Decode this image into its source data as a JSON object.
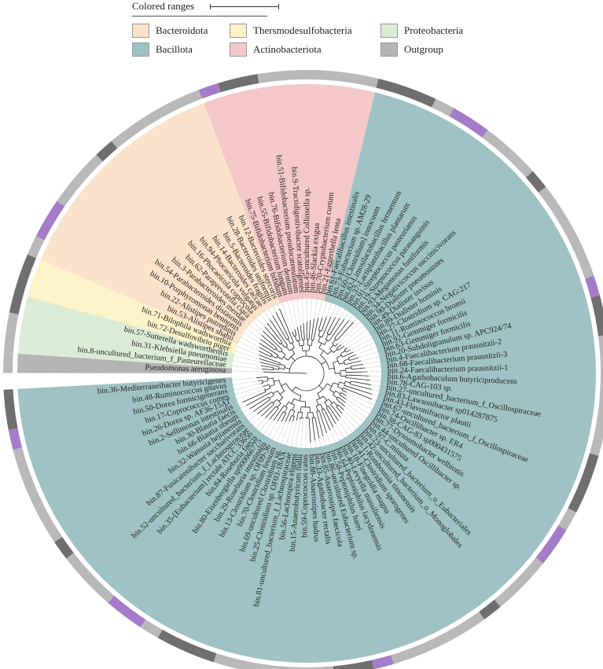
{
  "legend": {
    "title": "Colored ranges",
    "items": [
      {
        "label": "Bacteroidota",
        "color": "#fbe3cb"
      },
      {
        "label": "Thersmodesulfobacteria",
        "color": "#fdf3c8"
      },
      {
        "label": "Proteobacteria",
        "color": "#dbecd6"
      },
      {
        "label": "Bacillota",
        "color": "#9fc2c4"
      },
      {
        "label": "Actinobacteriota",
        "color": "#f4c8c8"
      },
      {
        "label": "Outgroup",
        "color": "#b4b4b4"
      }
    ]
  },
  "ring_colors": {
    "light": "#b9b9b9",
    "dark": "#6f6f6f",
    "purple": "#a57cc9"
  },
  "leaves": [
    "Pseudomonas aeruginosa",
    "bin.8-uncultured_bacterium_f_Pasteurellaceae",
    "bin.31-Klebsiella pneumoniae",
    "bin.57-Sutterella wadsworthensis",
    "bin.72-Desulfovibrio piger",
    "bin.71-Bilophila wadsworthia",
    "bin.53-Alistipes shahii",
    "bin.22-Alistipes putredinis",
    "bin.10-Porphyromonas bennonis",
    "bin.54-Parabacteroides distasonis",
    "bin.3-Parabacteroides merdae",
    "bin.62-Paraprevotella clara",
    "bin.16-Phocaeicola coprocola",
    "bin.94-Phocaeicola vulgatus",
    "bin.14-Bacteroides caccae",
    "bin.5-Bacteroides fragilis",
    "bin.28-Bacteroides uniformis",
    "bin.12-Bacteroides stercoris",
    "bin.75-Bifidobacterium bifidum",
    "bin.55-Bifidobacterium longum",
    "bin.76-Bifidobacterium dentium",
    "bin.51-Bifidobacterium pseudocatenulatum",
    "bin.9-Tractidigestivibacter scatoligenes",
    "bin.45-uncultured Collinsella sp.",
    "bin.46-Slackia exigua",
    "bin.70-Cryptobacterium curtum",
    "bin.21-Eggerthella lenta",
    "bin.61-Faecalibacillus intestinalis",
    "bin.73-Eubacterium sp. AM28-29",
    "bin.60-[Clostridium] innocuum",
    "bin.82-Limosilactobacillus fermentum",
    "bin.37-Lactiplantibacillus plantarum",
    "bin.91-Streptococcus pasteurianus",
    "bin.19-Streptococcus parasanguinis",
    "bin.93-Megamonas funiformis",
    "bin.34-Negativicoccus succinicivorans",
    "bin.90-Dialister pneumosintes",
    "bin.49-Dialister invisus",
    "bin.89-Dialister hominis",
    "bin.27-Clostridium sp. CAG:217",
    "bin.11-Ruminococcus bromii",
    "bin.92-Gemmiger formicilis",
    "bin.63-Gemmiger formicilis",
    "bin.20-Subdoligranulum sp. APC924/74",
    "bin.4-Faecalibacterium prausnitzii-2",
    "bin.68-Faecalibacterium prausnitzii-3",
    "bin.24-Faecalibacterium prausnitzii-1",
    "bin.6-Agathobaculum butyriciproducens",
    "bin.78-CAG-103 sp.",
    "bin.27-uncultured_bacterium_f_Oscillospiraceae",
    "bin.83-Lawsonibacter sp014287875",
    "bin.43-Flavonifractor plautii",
    "bin.67-uncultured_bacterium_f_Oscillospiraceae",
    "bin.74-Oscillibacter sp. ER4",
    "bin.38-CAG-83 sp000431575",
    "bin.77-Dysosmobacter welbionis",
    "bin.44-uncultured Oscillibacter sp.",
    "bin.97-C.minuta",
    "bin.23-uncultured_bacterium_o_Eubacteriales",
    "bin.42-uncultured_bacterium_o_Monoglobales",
    "bin.1-Romboutsia timonensis",
    "bin.41-Clostridium sporogenes",
    "bin.18-Finegoldia magna",
    "bin.40-Levyella massiliensis",
    "bin.64-Peptoniphilus lacydonensis",
    "bin.58-Peptoniphilus harei",
    "bin.86-uncultured Eubacterium sp.",
    "bin.85-Anaerostipes faecicola",
    "bin.33-Agathobacter rectalis",
    "bin.88-Anaerostipes hadrus",
    "bin.59-Coprococcus catus",
    "bin.15-Anaerobutyricum hallii",
    "bin.56-Lachnospira eligens",
    "bin.81-uncultured_bacterium_f_Lachnospiraceae",
    "bin.25-Clostridium sp. OF03-18AA",
    "bin.69-uncultured Clostridium sp.",
    "bin.70-Clostridium fessum",
    "bin.13-Clostridium sp. OF09-36",
    "bin.29-Roseburia intestinalis",
    "bin.80-Eisenbergiella sp900066775",
    "bin.84-Roseburia faecis",
    "bin.35-[Eubacterium] rectale ATCC 33656",
    "bin.52-uncultured_bacterium_f_Lachnospiraceae",
    "bin.87-Fusicatenibacter saccharivorans",
    "bin.32-Wansuia hejianensis",
    "bin.66-Blautia obeum",
    "bin.30-Blautia faecis",
    "bin.2-Sellimonas intestinalis",
    "bin.26-Dorea sp. AF36-15AT",
    "bin.17-Coprococcus comes",
    "bin.50-Dorea formicigenerans",
    "bin.48-Ruminococcus gnavus",
    "bin.36-Mediterraneibacter butyricigenes"
  ]
}
